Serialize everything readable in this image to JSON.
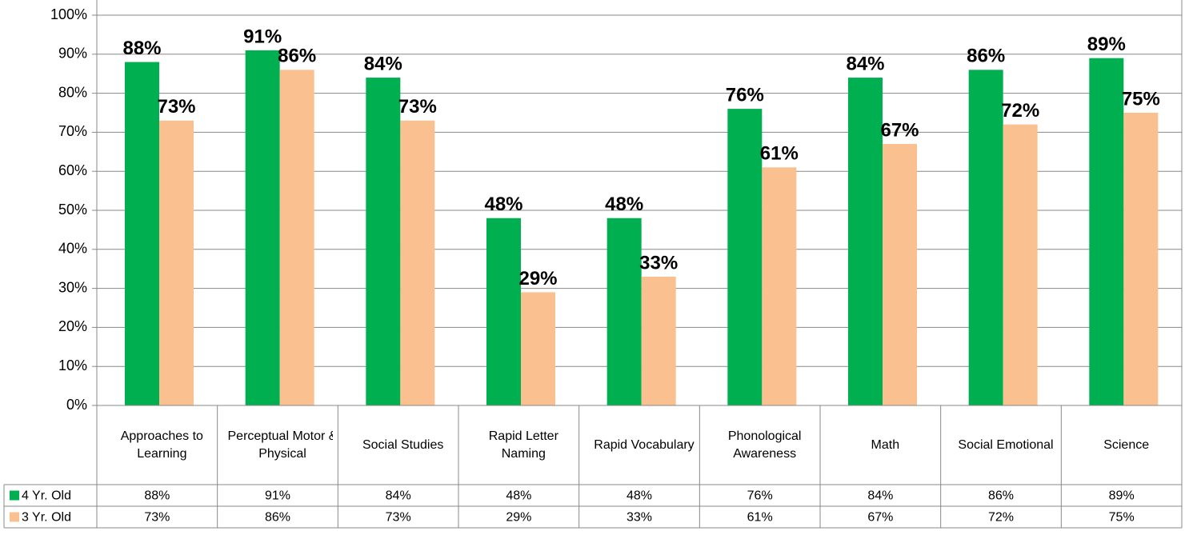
{
  "chart_data": {
    "type": "bar",
    "categories": [
      "Approaches to Learning",
      "Perceptual Motor & Physical",
      "Social Studies",
      "Rapid Letter Naming",
      "Rapid Vocabulary",
      "Phonological Awareness",
      "Math",
      "Social Emotional",
      "Science"
    ],
    "series": [
      {
        "name": "4 Yr. Old",
        "color": "#00b050",
        "values": [
          88,
          91,
          84,
          48,
          48,
          76,
          84,
          86,
          89
        ],
        "value_labels": [
          "88%",
          "91%",
          "84%",
          "48%",
          "48%",
          "76%",
          "84%",
          "86%",
          "89%"
        ]
      },
      {
        "name": "3 Yr. Old",
        "color": "#fac090",
        "values": [
          73,
          86,
          73,
          29,
          33,
          61,
          67,
          72,
          75
        ],
        "value_labels": [
          "73%",
          "86%",
          "73%",
          "29%",
          "33%",
          "61%",
          "67%",
          "72%",
          "75%"
        ]
      }
    ],
    "ylim": [
      0,
      100
    ],
    "yticks": [
      {
        "value": 0,
        "label": "0%"
      },
      {
        "value": 10,
        "label": "10%"
      },
      {
        "value": 20,
        "label": "20%"
      },
      {
        "value": 30,
        "label": "30%"
      },
      {
        "value": 40,
        "label": "40%"
      },
      {
        "value": 50,
        "label": "50%"
      },
      {
        "value": 60,
        "label": "60%"
      },
      {
        "value": 70,
        "label": "70%"
      },
      {
        "value": 80,
        "label": "80%"
      },
      {
        "value": 90,
        "label": "90%"
      },
      {
        "value": 100,
        "label": "100%"
      }
    ],
    "grid": true,
    "data_table": true
  }
}
